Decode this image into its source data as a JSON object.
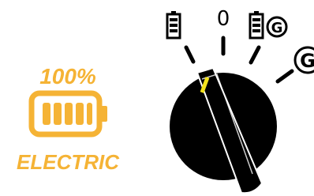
{
  "badge": {
    "percent": "100%",
    "label": "ELECTRIC"
  },
  "dial": {
    "off_label": "0",
    "generator_labels": [
      "G",
      "G"
    ]
  }
}
